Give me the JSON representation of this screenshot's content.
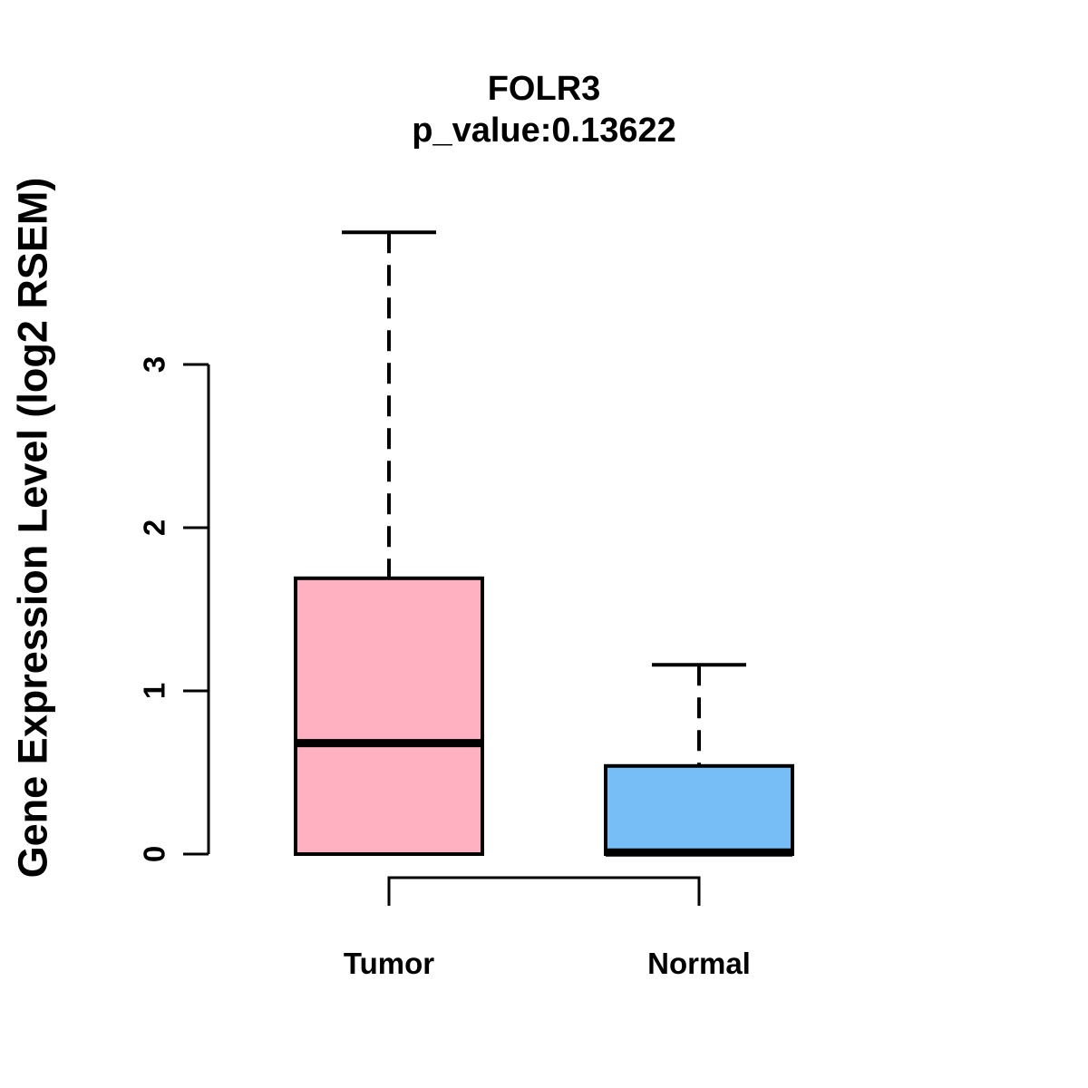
{
  "page": {
    "background": "#FFFFFF"
  },
  "chart_data": {
    "type": "boxplot",
    "title": "FOLR3",
    "subtitle": "p_value:0.13622",
    "gene": "FOLR3",
    "p_value": 0.13622,
    "ylabel": "Gene Expression Level (log2 RSEM)",
    "xlabel": "",
    "ylim": [
      0,
      3.85
    ],
    "yticks": [
      0,
      1,
      2,
      3
    ],
    "grid": false,
    "legend": "none",
    "categories": [
      "Tumor",
      "Normal"
    ],
    "groups": [
      {
        "label": "Tumor",
        "color": "#FFB1C1",
        "whisker_low": 0,
        "q1": 0,
        "median": 0.68,
        "q3": 1.69,
        "whisker_high": 3.81
      },
      {
        "label": "Normal",
        "color": "#77BDF6",
        "whisker_low": 0,
        "q1": 0,
        "median": 0.01,
        "q3": 0.54,
        "whisker_high": 1.16
      }
    ],
    "comparison_bracket": {
      "between": [
        "Tumor",
        "Normal"
      ],
      "label": ""
    },
    "stroke_color": "#000000"
  }
}
